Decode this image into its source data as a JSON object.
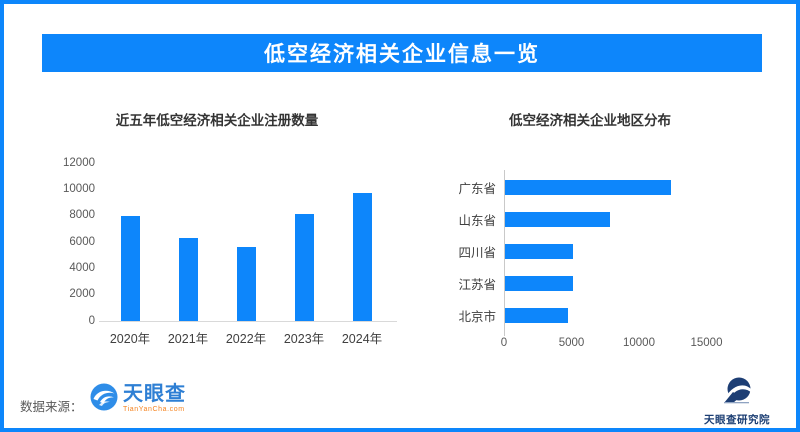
{
  "accent": "#0d86fb",
  "header": {
    "title": "低空经济相关企业信息一览"
  },
  "chart_data": [
    {
      "type": "bar",
      "orientation": "vertical",
      "title": "近五年低空经济相关企业注册数量",
      "categories": [
        "2020年",
        "2021年",
        "2022年",
        "2023年",
        "2024年"
      ],
      "values": [
        8000,
        6300,
        5600,
        8100,
        9700
      ],
      "ylim": [
        0,
        12000
      ],
      "y_ticks": [
        0,
        2000,
        4000,
        6000,
        8000,
        10000,
        12000
      ],
      "grid": false,
      "legend": "none",
      "bar_color": "#0d86fb"
    },
    {
      "type": "bar",
      "orientation": "horizontal",
      "title": "低空经济相关企业地区分布",
      "categories": [
        "广东省",
        "山东省",
        "四川省",
        "江苏省",
        "北京市"
      ],
      "values": [
        12300,
        7800,
        5000,
        5000,
        4700
      ],
      "xlim": [
        0,
        15000
      ],
      "x_ticks": [
        0,
        5000,
        10000,
        15000
      ],
      "grid": false,
      "legend": "none",
      "bar_color": "#0d86fb"
    }
  ],
  "footer": {
    "source_label": "数据来源：",
    "tianyancha_logo_text": "天眼查",
    "tianyancha_logo_subtext": "TianYanCha.com",
    "institute_label": "天眼查研究院"
  },
  "icons": {
    "tianyancha_logo": "tianyancha-eye-swirl-icon",
    "institute_logo": "tianyancha-institute-emblem-icon"
  }
}
